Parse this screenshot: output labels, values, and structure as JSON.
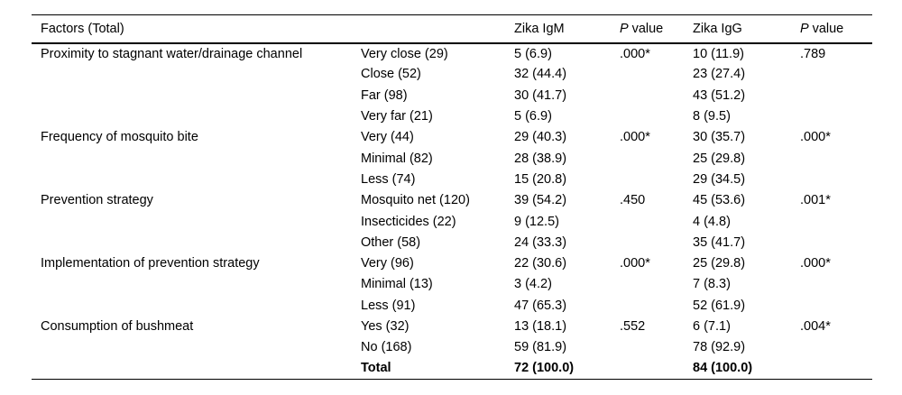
{
  "table": {
    "headers": {
      "factors": "Factors (Total)",
      "igm": "Zika IgM",
      "igg": "Zika IgG",
      "p_value": {
        "italic": "P",
        "rest": "value"
      }
    },
    "rows": [
      {
        "factor": "Proximity to stagnant water/drainage channel",
        "level": "Very close (29)",
        "igm": "5 (6.9)",
        "p_igm": ".000*",
        "igg": "10 (11.9)",
        "p_igg": ".789"
      },
      {
        "factor": "",
        "level": "Close (52)",
        "igm": "32 (44.4)",
        "p_igm": "",
        "igg": "23 (27.4)",
        "p_igg": ""
      },
      {
        "factor": "",
        "level": "Far (98)",
        "igm": "30 (41.7)",
        "p_igm": "",
        "igg": "43 (51.2)",
        "p_igg": ""
      },
      {
        "factor": "",
        "level": "Very far (21)",
        "igm": "5 (6.9)",
        "p_igm": "",
        "igg": "8 (9.5)",
        "p_igg": ""
      },
      {
        "factor": "Frequency of mosquito bite",
        "level": "Very (44)",
        "igm": "29 (40.3)",
        "p_igm": ".000*",
        "igg": "30 (35.7)",
        "p_igg": ".000*"
      },
      {
        "factor": "",
        "level": "Minimal (82)",
        "igm": "28 (38.9)",
        "p_igm": "",
        "igg": "25 (29.8)",
        "p_igg": ""
      },
      {
        "factor": "",
        "level": "Less (74)",
        "igm": "15 (20.8)",
        "p_igm": "",
        "igg": "29 (34.5)",
        "p_igg": ""
      },
      {
        "factor": "Prevention strategy",
        "level": "Mosquito net (120)",
        "igm": "39 (54.2)",
        "p_igm": ".450",
        "igg": "45 (53.6)",
        "p_igg": ".001*"
      },
      {
        "factor": "",
        "level": "Insecticides (22)",
        "igm": "9 (12.5)",
        "p_igm": "",
        "igg": "4 (4.8)",
        "p_igg": ""
      },
      {
        "factor": "",
        "level": "Other (58)",
        "igm": "24 (33.3)",
        "p_igm": "",
        "igg": "35 (41.7)",
        "p_igg": ""
      },
      {
        "factor": "Implementation of prevention strategy",
        "level": "Very (96)",
        "igm": "22 (30.6)",
        "p_igm": ".000*",
        "igg": "25 (29.8)",
        "p_igg": ".000*"
      },
      {
        "factor": "",
        "level": "Minimal (13)",
        "igm": "3 (4.2)",
        "p_igm": "",
        "igg": "7 (8.3)",
        "p_igg": ""
      },
      {
        "factor": "",
        "level": "Less (91)",
        "igm": "47 (65.3)",
        "p_igm": "",
        "igg": "52 (61.9)",
        "p_igg": ""
      },
      {
        "factor": "Consumption of bushmeat",
        "level": "Yes (32)",
        "igm": "13 (18.1)",
        "p_igm": ".552",
        "igg": "6 (7.1)",
        "p_igg": ".004*"
      },
      {
        "factor": "",
        "level": "No (168)",
        "igm": "59 (81.9)",
        "p_igm": "",
        "igg": "78 (92.9)",
        "p_igg": ""
      },
      {
        "factor": "",
        "level": "Total",
        "igm": "72 (100.0)",
        "p_igm": "",
        "igg": "84 (100.0)",
        "p_igg": "",
        "bold": true
      }
    ]
  }
}
